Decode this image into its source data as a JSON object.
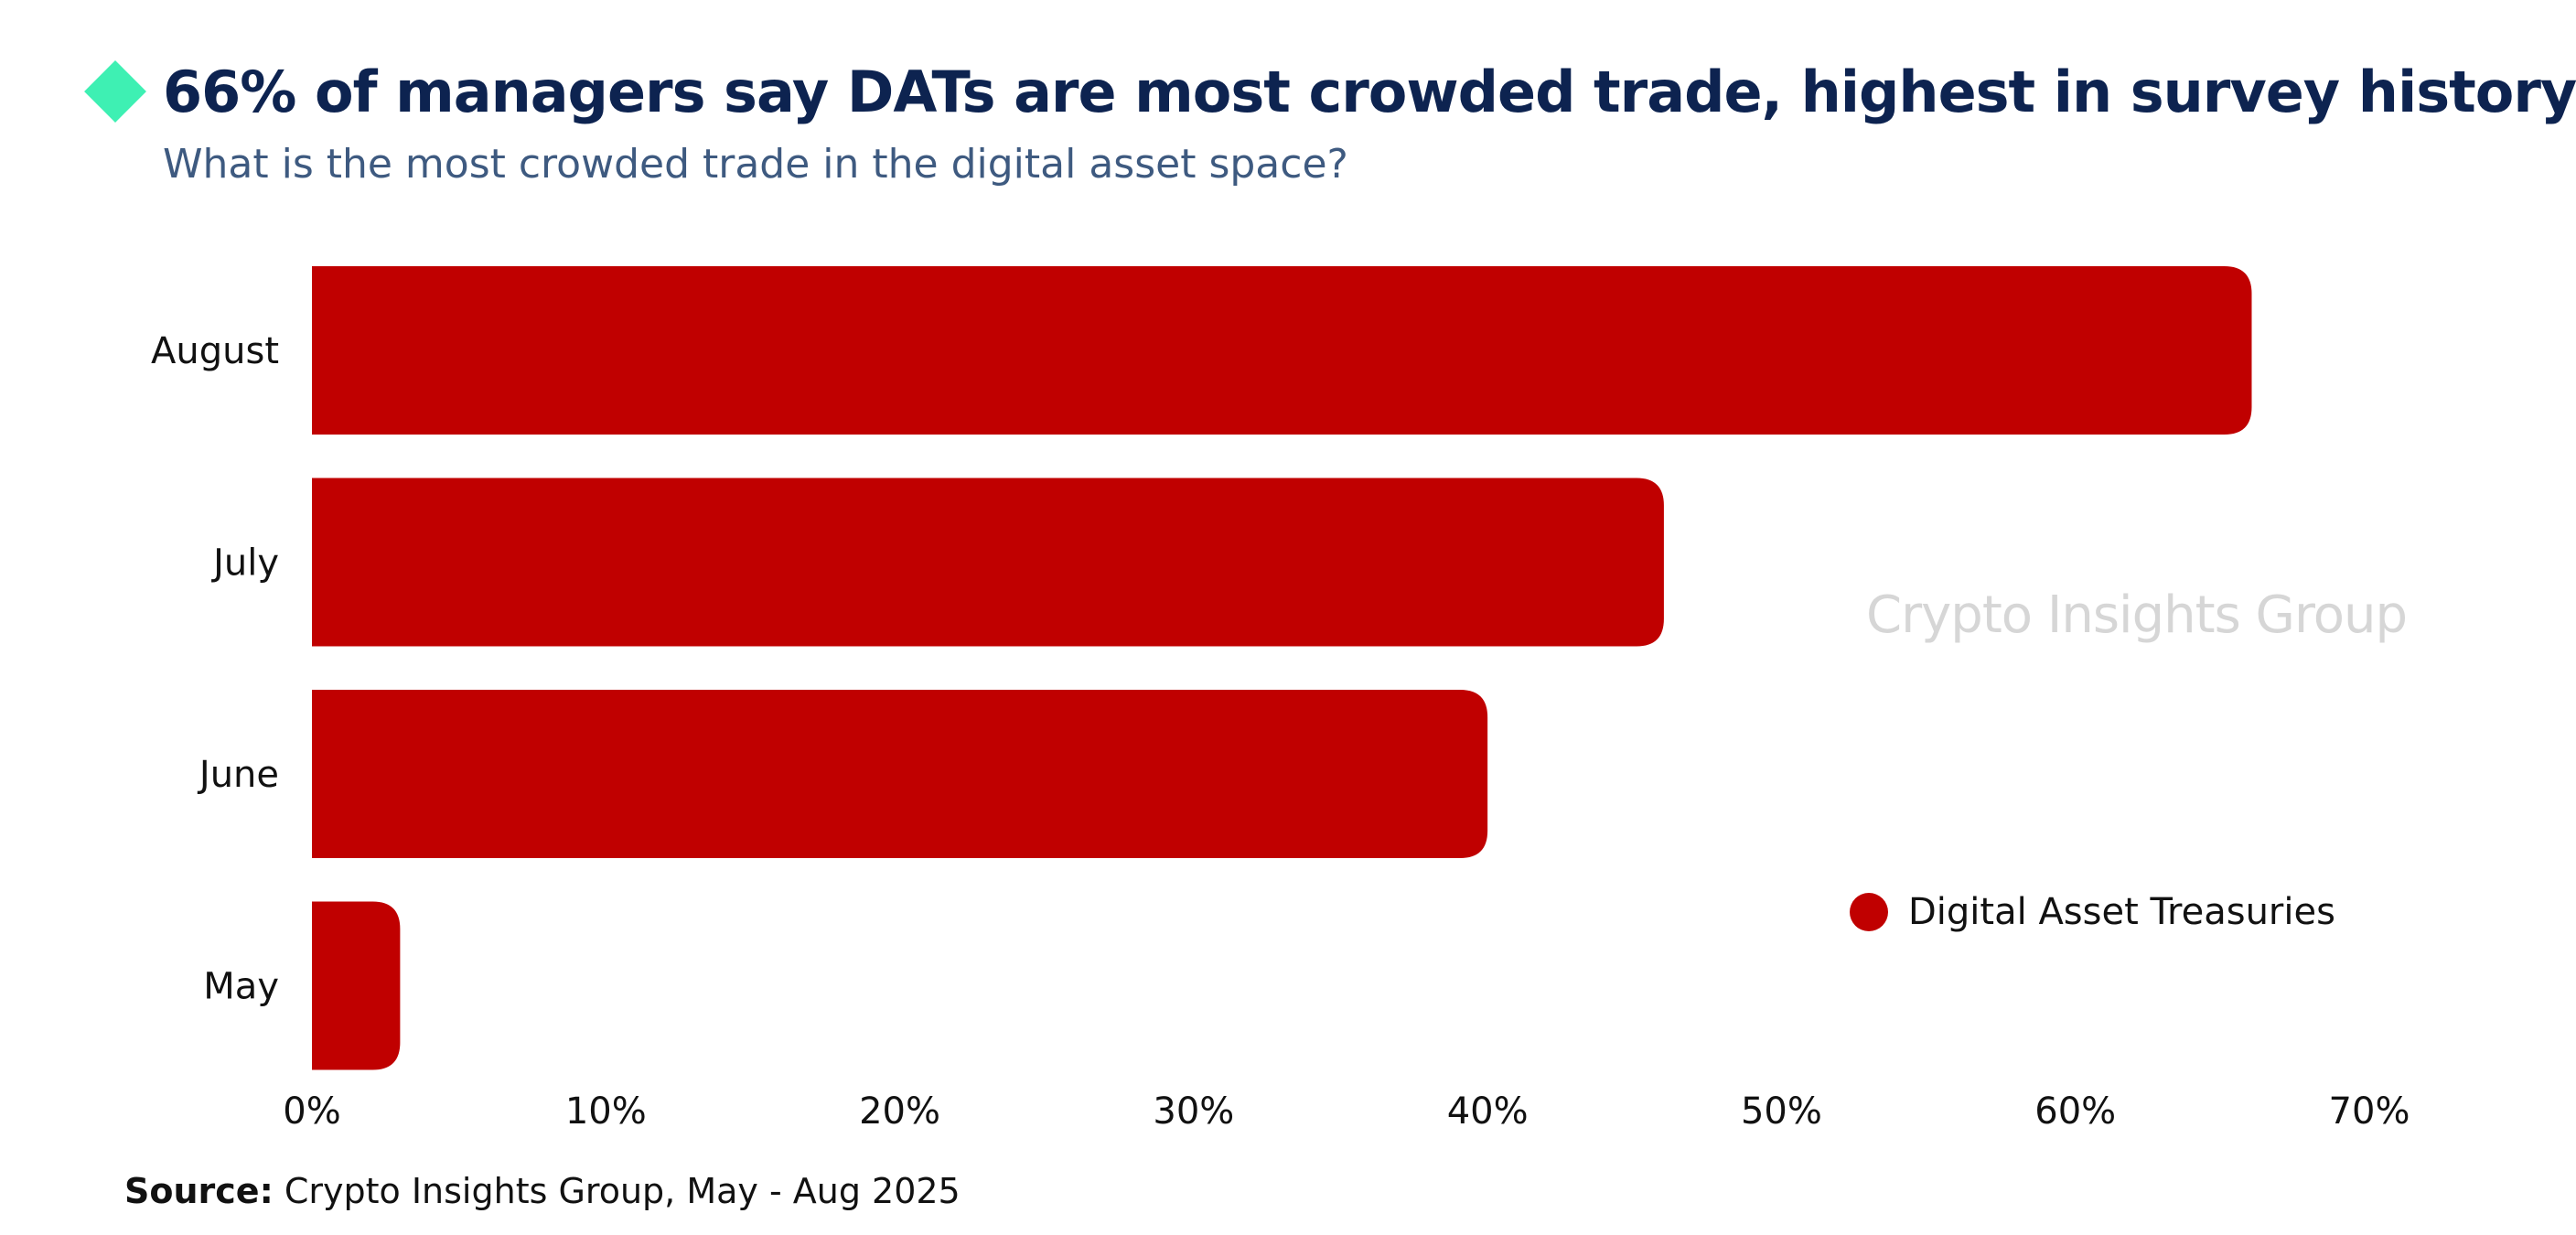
{
  "header": {
    "title": "66% of managers say DATs are most crowded trade, highest in survey history",
    "subtitle": "What is the most crowded trade in the digital asset space?"
  },
  "colors": {
    "bar": "#c00000",
    "accent_icon": "#3ef0b3",
    "title": "#0d2350",
    "subtitle": "#3e5a80"
  },
  "icons": {
    "title_marker": "diamond-icon"
  },
  "watermark": "Crypto Insights Group",
  "legend": {
    "label": "Digital Asset Treasuries"
  },
  "source": {
    "label": "Source:",
    "text": " Crypto Insights Group, May - Aug 2025"
  },
  "chart_data": {
    "type": "bar",
    "orientation": "horizontal",
    "categories": [
      "August",
      "July",
      "June",
      "May"
    ],
    "series": [
      {
        "name": "Digital Asset Treasuries",
        "values": [
          66,
          46,
          40,
          3
        ]
      }
    ],
    "xlim": [
      0,
      70
    ],
    "x_ticks": [
      "0%",
      "10%",
      "20%",
      "30%",
      "40%",
      "50%",
      "60%",
      "70%"
    ],
    "grid": false,
    "legend_position": "bottom-right"
  }
}
